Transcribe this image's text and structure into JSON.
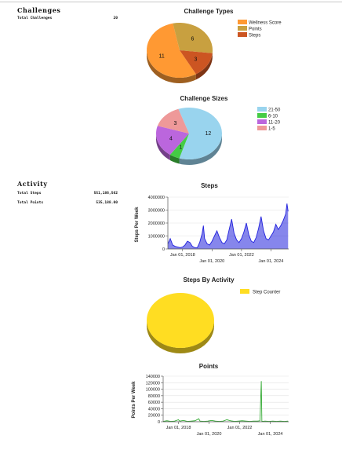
{
  "sections": {
    "challenges": {
      "heading": "Challenges",
      "stats": [
        {
          "label": "Total Challenges",
          "value": "20"
        }
      ]
    },
    "activity": {
      "heading": "Activity",
      "stats": [
        {
          "label": "Total Steps",
          "value": "551,186,562"
        },
        {
          "label": "Total Points",
          "value": "535,188.00"
        }
      ]
    }
  },
  "chart_data": [
    {
      "id": "challenge-types",
      "type": "pie",
      "title": "Challenge Types",
      "labels": [
        "Wellness Score",
        "Points",
        "Steps"
      ],
      "values": [
        11,
        6,
        3
      ],
      "colors": [
        "#ff9933",
        "#c8a040",
        "#cc5522"
      ],
      "legend": "top-right"
    },
    {
      "id": "challenge-sizes",
      "type": "pie",
      "title": "Challenge Sizes",
      "labels": [
        "21-50",
        "6-10",
        "11-20",
        "1-5"
      ],
      "values": [
        12,
        1,
        4,
        3
      ],
      "colors": [
        "#99d4ee",
        "#44cc44",
        "#bb66dd",
        "#ee9999"
      ],
      "legend": "top-right"
    },
    {
      "id": "steps",
      "type": "area",
      "title": "Steps",
      "ylabel": "Steps Per Week",
      "ylim": [
        0,
        4000000
      ],
      "yticks": [
        0,
        1000000,
        2000000,
        3000000,
        4000000
      ],
      "ytick_labels": [
        "0",
        "1000000",
        "2000000",
        "3000000",
        "4000000"
      ],
      "xrange": [
        "2017-01-01",
        "2025-03-15"
      ],
      "xticks": [
        "Jan 01, 2018",
        "Jan 01, 2020",
        "Jan 01, 2022",
        "Jan 01, 2024"
      ],
      "color": "#2222dd",
      "grid": true,
      "points": [
        [
          "2017-01-01",
          400000
        ],
        [
          "2017-03-01",
          800000
        ],
        [
          "2017-05-01",
          300000
        ],
        [
          "2017-07-01",
          200000
        ],
        [
          "2017-09-01",
          150000
        ],
        [
          "2017-11-01",
          100000
        ],
        [
          "2018-01-01",
          150000
        ],
        [
          "2018-03-01",
          300000
        ],
        [
          "2018-05-01",
          600000
        ],
        [
          "2018-07-01",
          500000
        ],
        [
          "2018-09-01",
          200000
        ],
        [
          "2018-11-01",
          100000
        ],
        [
          "2019-01-01",
          100000
        ],
        [
          "2019-03-01",
          500000
        ],
        [
          "2019-05-01",
          1200000
        ],
        [
          "2019-06-01",
          1800000
        ],
        [
          "2019-07-01",
          800000
        ],
        [
          "2019-09-01",
          400000
        ],
        [
          "2019-11-01",
          300000
        ],
        [
          "2020-01-01",
          600000
        ],
        [
          "2020-03-01",
          1000000
        ],
        [
          "2020-05-01",
          1400000
        ],
        [
          "2020-07-01",
          900000
        ],
        [
          "2020-09-01",
          500000
        ],
        [
          "2020-11-01",
          400000
        ],
        [
          "2021-01-01",
          700000
        ],
        [
          "2021-03-01",
          1500000
        ],
        [
          "2021-05-01",
          2300000
        ],
        [
          "2021-07-01",
          1200000
        ],
        [
          "2021-09-01",
          700000
        ],
        [
          "2021-11-01",
          500000
        ],
        [
          "2022-01-01",
          800000
        ],
        [
          "2022-03-01",
          1300000
        ],
        [
          "2022-05-01",
          2000000
        ],
        [
          "2022-07-01",
          1100000
        ],
        [
          "2022-09-01",
          600000
        ],
        [
          "2022-11-01",
          500000
        ],
        [
          "2023-01-01",
          900000
        ],
        [
          "2023-03-01",
          1600000
        ],
        [
          "2023-05-01",
          2500000
        ],
        [
          "2023-07-01",
          1400000
        ],
        [
          "2023-09-01",
          800000
        ],
        [
          "2023-11-01",
          700000
        ],
        [
          "2024-01-01",
          1000000
        ],
        [
          "2024-03-01",
          1300000
        ],
        [
          "2024-05-01",
          1900000
        ],
        [
          "2024-07-01",
          1500000
        ],
        [
          "2024-09-01",
          1800000
        ],
        [
          "2024-11-01",
          2200000
        ],
        [
          "2025-01-01",
          2700000
        ],
        [
          "2025-02-01",
          3500000
        ],
        [
          "2025-03-01",
          2900000
        ]
      ]
    },
    {
      "id": "steps-by-activity",
      "type": "pie",
      "title": "Steps By Activity",
      "labels": [
        "Step Counter"
      ],
      "values": [
        100
      ],
      "colors": [
        "#ffdd22"
      ],
      "legend": "top-right"
    },
    {
      "id": "points",
      "type": "line",
      "title": "Points",
      "ylabel": "Points Per Week",
      "ylim": [
        0,
        140000
      ],
      "yticks": [
        0,
        20000,
        40000,
        60000,
        80000,
        100000,
        120000,
        140000
      ],
      "ytick_labels": [
        "0",
        "20000",
        "40000",
        "60000",
        "80000",
        "100000",
        "120000",
        "140000"
      ],
      "xrange": [
        "2017-01-01",
        "2025-03-15"
      ],
      "xticks": [
        "Jan 01, 2018",
        "Jan 01, 2020",
        "Jan 01, 2022",
        "Jan 01, 2024"
      ],
      "color": "#33aa33",
      "grid": true,
      "points": [
        [
          "2017-01-01",
          1000
        ],
        [
          "2017-04-01",
          3000
        ],
        [
          "2017-07-01",
          1000
        ],
        [
          "2017-10-01",
          2000
        ],
        [
          "2018-01-01",
          6000
        ],
        [
          "2018-02-01",
          2000
        ],
        [
          "2018-05-01",
          4000
        ],
        [
          "2018-08-01",
          1000
        ],
        [
          "2018-11-01",
          2000
        ],
        [
          "2019-02-01",
          3000
        ],
        [
          "2019-05-01",
          9000
        ],
        [
          "2019-06-01",
          2000
        ],
        [
          "2019-09-01",
          1000
        ],
        [
          "2019-12-01",
          2000
        ],
        [
          "2020-03-01",
          4000
        ],
        [
          "2020-06-01",
          2000
        ],
        [
          "2020-09-01",
          1000
        ],
        [
          "2020-12-01",
          2000
        ],
        [
          "2021-03-01",
          6000
        ],
        [
          "2021-06-01",
          3000
        ],
        [
          "2021-09-01",
          1000
        ],
        [
          "2021-12-01",
          2000
        ],
        [
          "2022-03-01",
          3000
        ],
        [
          "2022-06-01",
          2000
        ],
        [
          "2022-09-01",
          1000
        ],
        [
          "2022-12-01",
          2000
        ],
        [
          "2023-03-01",
          2000
        ],
        [
          "2023-05-01",
          3000
        ],
        [
          "2023-06-01",
          125000
        ],
        [
          "2023-06-15",
          1000
        ],
        [
          "2023-09-01",
          2000
        ],
        [
          "2023-12-01",
          1000
        ],
        [
          "2024-03-01",
          2000
        ],
        [
          "2024-06-01",
          1000
        ],
        [
          "2024-09-01",
          2000
        ],
        [
          "2024-12-01",
          1000
        ],
        [
          "2025-03-01",
          2000
        ]
      ]
    }
  ]
}
